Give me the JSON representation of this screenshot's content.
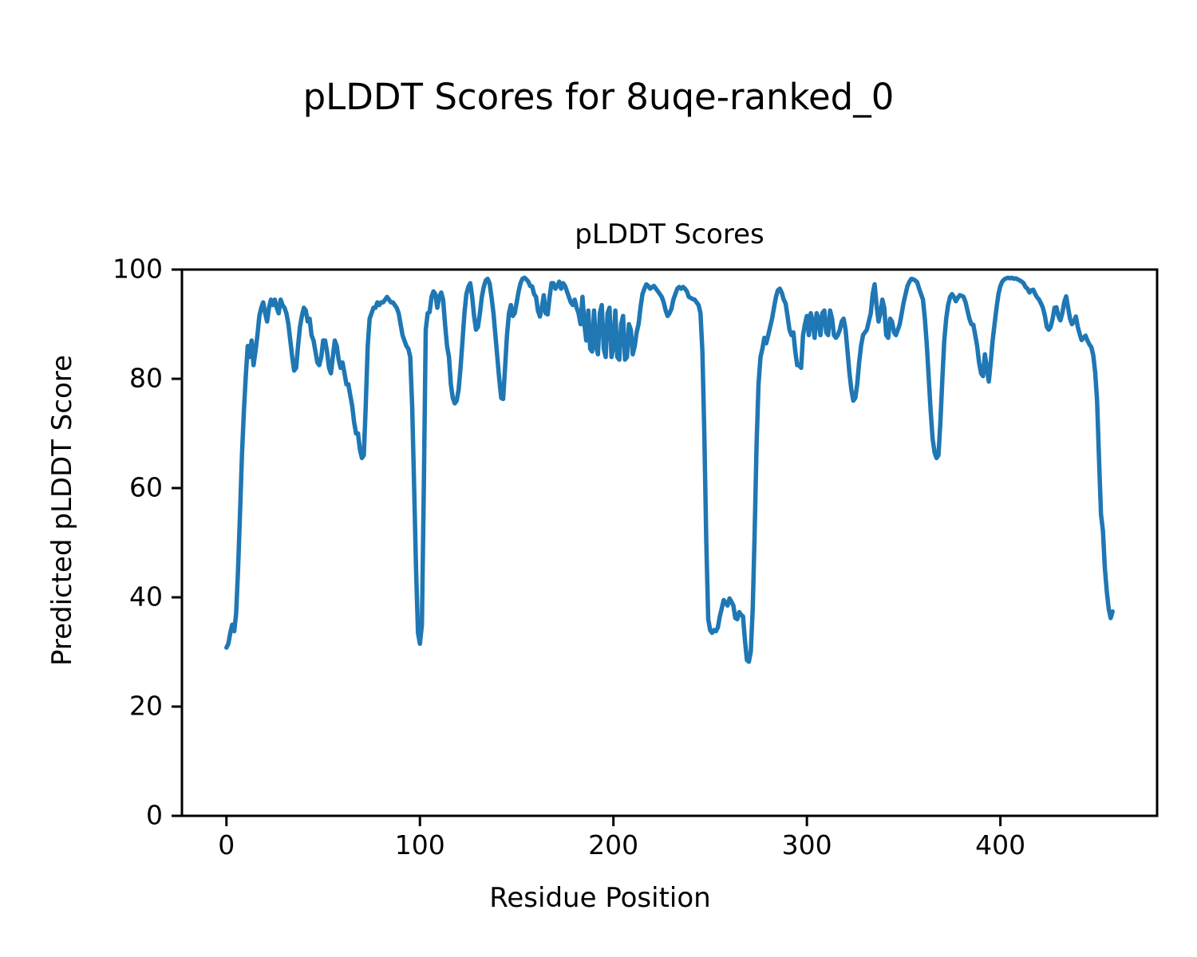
{
  "figure": {
    "suptitle": "pLDDT Scores for 8uqe-ranked_0"
  },
  "chart_data": {
    "type": "line",
    "title": "pLDDT Scores",
    "xlabel": "Residue Position",
    "ylabel": "Predicted pLDDT Score",
    "xlim": [
      -23,
      481
    ],
    "ylim": [
      0,
      100
    ],
    "xticks": [
      0,
      100,
      200,
      300,
      400
    ],
    "yticks": [
      0,
      20,
      40,
      60,
      80,
      100
    ],
    "grid": false,
    "line_color": "#1f77b4",
    "axis_color": "#000000",
    "series": [
      {
        "name": "pLDDT",
        "x_start": 0,
        "x_step": 1,
        "values": [
          30.8,
          31.5,
          33.5,
          35,
          33.8,
          37,
          45,
          55,
          66,
          74,
          80.5,
          86,
          84,
          87,
          82.5,
          85,
          88,
          91.5,
          93,
          94,
          92,
          90.5,
          93,
          94.5,
          93.5,
          94.5,
          93,
          92,
          94.5,
          93.5,
          93,
          92,
          90,
          87,
          84,
          81.5,
          82,
          86,
          89.5,
          91.5,
          93,
          92.5,
          90.5,
          91,
          88,
          87,
          85,
          83,
          82.5,
          84,
          87,
          87,
          85,
          82,
          81,
          84,
          87,
          86,
          83.5,
          82,
          83,
          81,
          79,
          79,
          77,
          75,
          72,
          70,
          70,
          67,
          65.5,
          66,
          75,
          86,
          91,
          92,
          93,
          93,
          94,
          93.5,
          94,
          94,
          94.5,
          95,
          94.5,
          94,
          94,
          93.5,
          93,
          92,
          90,
          88,
          87,
          86,
          85.5,
          84,
          75,
          60,
          45,
          33.5,
          31.5,
          35,
          60,
          89,
          92,
          92.2,
          95,
          96,
          95.5,
          93,
          95,
          95.8,
          94.5,
          90,
          86,
          84,
          79,
          76.5,
          75.5,
          76,
          78,
          82,
          87,
          92,
          95.5,
          96.8,
          97.5,
          95,
          91.5,
          89,
          89.5,
          92,
          95,
          96.8,
          98,
          98.3,
          97.5,
          95,
          92,
          88,
          84,
          80,
          76.5,
          76.3,
          82,
          88,
          92,
          93.5,
          91.5,
          92,
          94,
          96,
          97.5,
          98.3,
          98.5,
          98.2,
          97.8,
          97,
          96.9,
          95.5,
          95,
          92.5,
          91.4,
          93,
          95.3,
          92,
          91.8,
          95,
          97.5,
          97.5,
          96.5,
          97,
          97.8,
          96.5,
          97.5,
          97,
          96,
          95,
          94,
          93.5,
          94.5,
          93,
          92,
          90,
          95,
          90,
          87,
          92.5,
          85.5,
          85,
          92.5,
          86,
          84.5,
          92,
          93.5,
          85.5,
          84,
          92,
          93,
          84,
          86,
          92.5,
          84,
          83.5,
          90,
          91.5,
          83.5,
          84,
          90,
          89,
          84.5,
          86,
          88.5,
          90,
          93,
          95.5,
          96.5,
          97.3,
          97,
          96.5,
          96.8,
          97,
          96.5,
          96,
          95.5,
          95,
          94,
          92.5,
          91.5,
          92,
          92.8,
          94.5,
          95.5,
          96.5,
          96.8,
          96.5,
          96.8,
          96.5,
          96,
          95,
          94.8,
          94.6,
          94.5,
          94,
          93.5,
          92,
          85,
          70,
          50,
          36,
          34,
          33.5,
          34,
          33.8,
          34.5,
          36.5,
          38,
          39.5,
          39,
          38.5,
          39.8,
          39.2,
          38.5,
          36.2,
          36,
          37.3,
          36.8,
          36.5,
          32,
          28.5,
          28.2,
          30,
          38,
          52,
          68,
          79,
          84,
          85.5,
          87.5,
          86.5,
          88,
          89.5,
          91,
          93,
          95,
          96.2,
          96.5,
          95.8,
          94.5,
          93.8,
          91.5,
          89,
          88,
          88.5,
          85,
          82.5,
          82.5,
          82,
          88,
          90,
          91.5,
          88,
          92,
          90.5,
          87.5,
          92,
          91,
          88,
          92,
          92.5,
          88.5,
          88,
          92.5,
          91,
          88,
          87.5,
          88,
          89,
          90.5,
          91,
          89,
          85,
          81,
          78,
          76,
          76.5,
          79,
          83,
          86,
          88,
          88.5,
          89,
          90.5,
          92,
          95.5,
          97.3,
          93.5,
          90.5,
          92,
          94.5,
          93,
          88,
          87.5,
          91,
          90.5,
          88.5,
          88,
          89,
          90,
          92,
          94,
          95.5,
          97,
          97.8,
          98.3,
          98.2,
          98,
          97.7,
          96.5,
          95.5,
          94.5,
          91,
          86,
          80,
          74,
          69,
          66.5,
          65.5,
          66,
          72,
          80,
          87,
          91,
          93.5,
          95,
          95.5,
          95,
          94.2,
          94.8,
          95.3,
          95.2,
          95,
          94,
          92.5,
          91,
          90,
          89.9,
          88,
          86,
          83,
          81,
          80.5,
          84.5,
          82,
          79.5,
          83,
          87,
          90,
          93,
          95.5,
          97,
          97.8,
          98.2,
          98.4,
          98.5,
          98.4,
          98.5,
          98.3,
          98.4,
          98.2,
          98,
          97.8,
          97.5,
          96.8,
          96.5,
          95.8,
          96.2,
          96.3,
          95.5,
          94.9,
          94.5,
          93.8,
          93,
          91.5,
          89.5,
          89,
          89.5,
          91,
          93,
          93.1,
          91.5,
          90.7,
          92,
          94,
          95.1,
          93,
          91,
          90,
          90.5,
          91.4,
          89.5,
          88.2,
          87.1,
          87.5,
          87.9,
          87,
          86.3,
          85.8,
          84.3,
          81.2,
          76,
          65,
          55.2,
          52.2,
          45.4,
          41,
          37.9,
          36.2,
          37.4
        ]
      }
    ]
  }
}
